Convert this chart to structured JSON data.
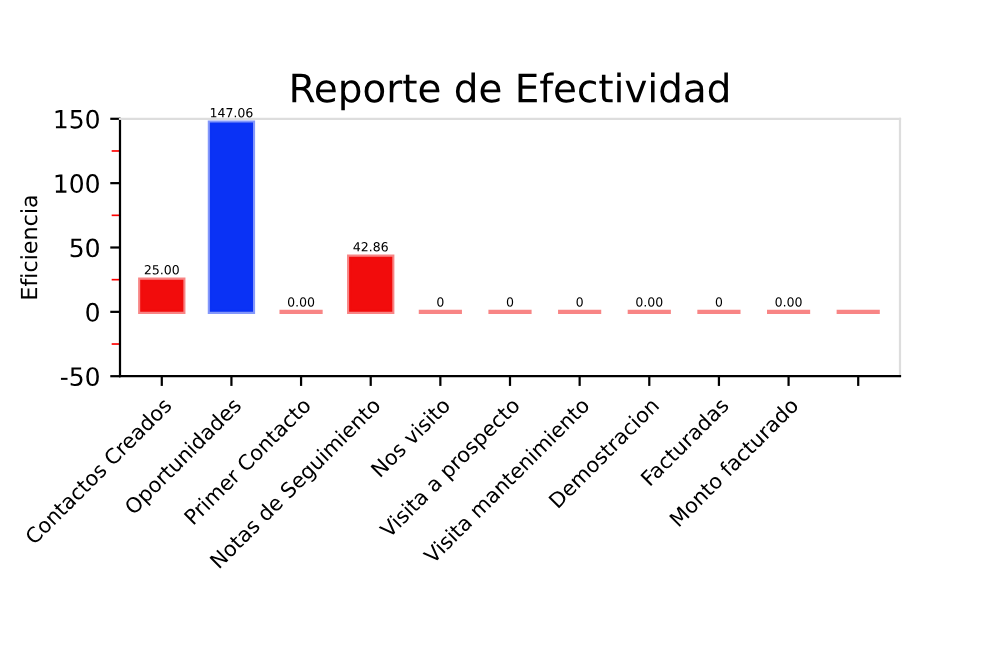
{
  "chart_data": {
    "type": "bar",
    "title": "Reporte de Efectividad",
    "ylabel": "Eficiencia",
    "categories": [
      "Contactos Creados",
      "Oportunidades",
      "Primer Contacto",
      "Notas de Seguimiento",
      "Nos visito",
      "Visita a prospecto",
      "Visita mantenimiento",
      "Demostracion",
      "Facturadas",
      "Monto facturado",
      null
    ],
    "values": [
      25,
      147.06,
      0,
      42.86,
      0,
      0,
      0,
      0,
      0,
      0,
      0
    ],
    "value_labels": [
      "25.00",
      "147.06",
      "0.00",
      "42.86",
      "0",
      "0",
      "0",
      "0.00",
      "0",
      "0.00",
      null
    ],
    "colors": [
      "#f20c0c",
      "#0a32f5",
      "#f20c0c",
      "#f20c0c",
      "#f20c0c",
      "#f20c0c",
      "#f20c0c",
      "#f20c0c",
      "#f20c0c",
      "#f20c0c",
      "#f20c0c"
    ],
    "ylim": [
      -50,
      150
    ],
    "yticks": [
      -50,
      0,
      50,
      100,
      150
    ]
  }
}
